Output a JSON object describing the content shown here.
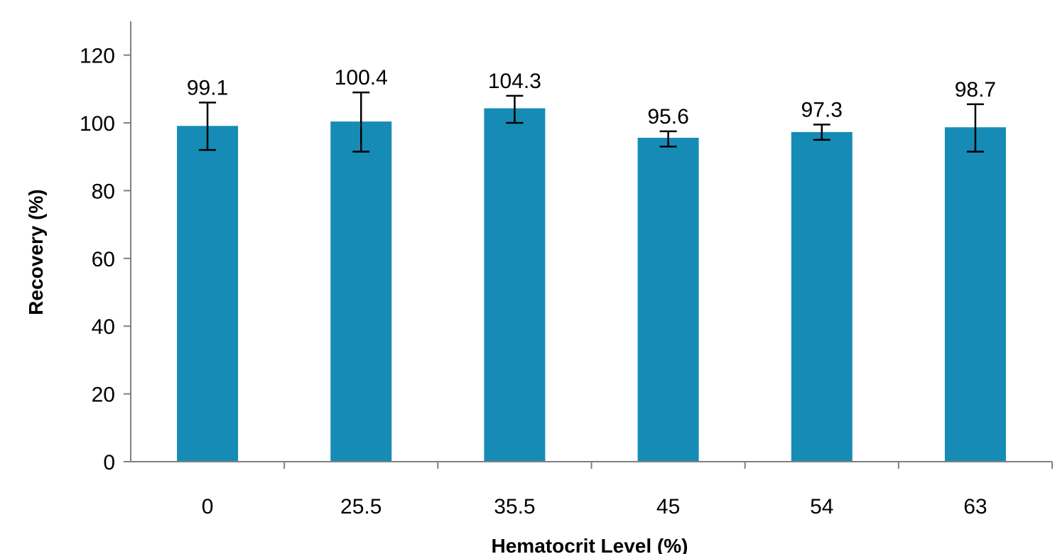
{
  "chart_data": {
    "type": "bar",
    "categories": [
      "0",
      "25.5",
      "35.5",
      "45",
      "54",
      "63"
    ],
    "values": [
      99.1,
      100.4,
      104.3,
      95.6,
      97.3,
      98.7
    ],
    "data_labels": [
      "99.1",
      "100.4",
      "104.3",
      "95.6",
      "97.3",
      "98.7"
    ],
    "error_bars": [
      {
        "low": 92,
        "high": 106
      },
      {
        "low": 91.5,
        "high": 109
      },
      {
        "low": 100,
        "high": 108
      },
      {
        "low": 93,
        "high": 97.5
      },
      {
        "low": 95,
        "high": 99.5
      },
      {
        "low": 91.5,
        "high": 105.5
      }
    ],
    "title": "",
    "xlabel": "Hematocrit Level (%)",
    "ylabel": "Recovery (%)",
    "ylim": [
      0,
      130
    ],
    "yticks": [
      0,
      20,
      40,
      60,
      80,
      100,
      120
    ],
    "ytick_labels": [
      "0",
      "20",
      "40",
      "60",
      "80",
      "100",
      "120"
    ],
    "grid": false,
    "legend": "none",
    "bar_color": "#168bb5",
    "axis_color": "#808080",
    "error_bar_color": "#000000"
  }
}
